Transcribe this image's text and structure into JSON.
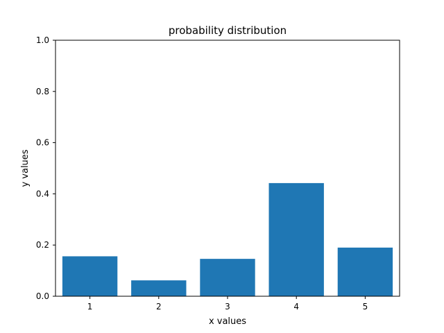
{
  "chart_data": {
    "type": "bar",
    "title": "probability distribution",
    "xlabel": "x values",
    "ylabel": "y values",
    "categories": [
      "1",
      "2",
      "3",
      "4",
      "5"
    ],
    "values": [
      0.156,
      0.062,
      0.146,
      0.442,
      0.19
    ],
    "ylim": [
      0,
      1.0
    ],
    "yticks": [
      "0.0",
      "0.2",
      "0.4",
      "0.6",
      "0.8",
      "1.0"
    ],
    "grid": false,
    "bar_color": "#1f77b4"
  }
}
